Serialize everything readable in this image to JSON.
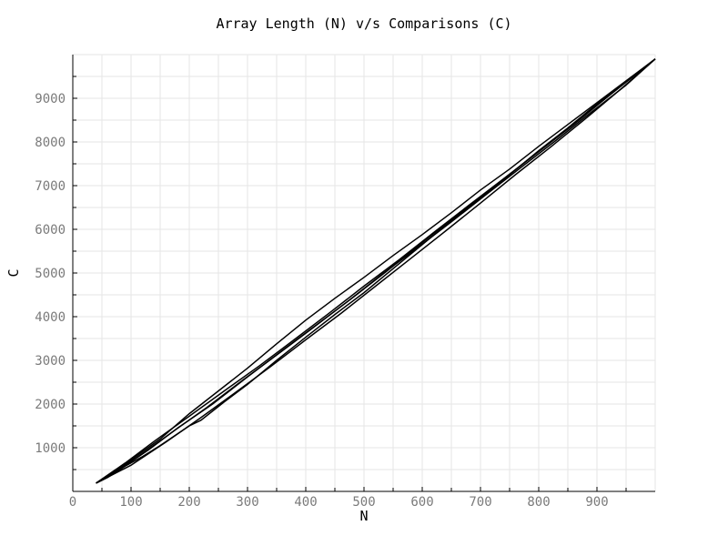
{
  "chart_data": {
    "type": "line",
    "title": "Array Length (N) v/s Comparisons (C)",
    "xlabel": "N",
    "ylabel": "C",
    "xlim": [
      0,
      1000
    ],
    "ylim": [
      0,
      10000
    ],
    "x_ticks": [
      0,
      100,
      200,
      300,
      400,
      500,
      600,
      700,
      800,
      900
    ],
    "y_ticks": [
      1000,
      2000,
      3000,
      4000,
      5000,
      6000,
      7000,
      8000,
      9000
    ],
    "x_tick_labels": [
      "0",
      "100",
      "200",
      "300",
      "400",
      "500",
      "600",
      "700",
      "800",
      "900"
    ],
    "y_tick_labels": [
      "1000",
      "2000",
      "3000",
      "4000",
      "5000",
      "6000",
      "7000",
      "8000",
      "9000"
    ],
    "grid": true,
    "line_color": "#000000",
    "grid_color": "#e6e6e6",
    "series": [
      {
        "values": [
          [
            40,
            190
          ],
          [
            60,
            320
          ],
          [
            90,
            580
          ],
          [
            120,
            800
          ],
          [
            150,
            1050
          ],
          [
            200,
            1500
          ],
          [
            220,
            1630
          ],
          [
            260,
            2050
          ],
          [
            300,
            2450
          ],
          [
            350,
            3000
          ],
          [
            400,
            3530
          ],
          [
            450,
            4050
          ],
          [
            500,
            4550
          ],
          [
            550,
            5100
          ],
          [
            600,
            5650
          ],
          [
            650,
            6200
          ],
          [
            700,
            6730
          ],
          [
            750,
            7250
          ],
          [
            800,
            7800
          ],
          [
            850,
            8320
          ],
          [
            900,
            8870
          ],
          [
            950,
            9380
          ],
          [
            1000,
            9900
          ]
        ]
      },
      {
        "values": [
          [
            40,
            190
          ],
          [
            70,
            420
          ],
          [
            100,
            720
          ],
          [
            150,
            1200
          ],
          [
            200,
            1780
          ],
          [
            250,
            2300
          ],
          [
            300,
            2820
          ],
          [
            350,
            3380
          ],
          [
            400,
            3920
          ],
          [
            450,
            4420
          ],
          [
            500,
            4900
          ],
          [
            550,
            5400
          ],
          [
            600,
            5880
          ],
          [
            650,
            6380
          ],
          [
            700,
            6900
          ],
          [
            750,
            7380
          ],
          [
            800,
            7900
          ],
          [
            850,
            8400
          ],
          [
            900,
            8900
          ],
          [
            950,
            9400
          ],
          [
            1000,
            9900
          ]
        ]
      },
      {
        "values": [
          [
            40,
            190
          ],
          [
            80,
            500
          ],
          [
            130,
            950
          ],
          [
            180,
            1450
          ],
          [
            240,
            2000
          ],
          [
            300,
            2620
          ],
          [
            360,
            3230
          ],
          [
            420,
            3830
          ],
          [
            480,
            4430
          ],
          [
            540,
            5050
          ],
          [
            600,
            5700
          ],
          [
            660,
            6330
          ],
          [
            720,
            6950
          ],
          [
            780,
            7570
          ],
          [
            840,
            8200
          ],
          [
            900,
            8850
          ],
          [
            960,
            9480
          ],
          [
            1000,
            9900
          ]
        ]
      },
      {
        "values": [
          [
            40,
            190
          ],
          [
            90,
            650
          ],
          [
            140,
            1150
          ],
          [
            200,
            1720
          ],
          [
            260,
            2300
          ],
          [
            320,
            2870
          ],
          [
            380,
            3470
          ],
          [
            440,
            4080
          ],
          [
            500,
            4700
          ],
          [
            560,
            5300
          ],
          [
            620,
            5930
          ],
          [
            680,
            6550
          ],
          [
            740,
            7160
          ],
          [
            800,
            7780
          ],
          [
            860,
            8400
          ],
          [
            920,
            9050
          ],
          [
            1000,
            9900
          ]
        ]
      },
      {
        "values": [
          [
            40,
            190
          ],
          [
            100,
            600
          ],
          [
            160,
            1130
          ],
          [
            220,
            1690
          ],
          [
            280,
            2270
          ],
          [
            340,
            2860
          ],
          [
            400,
            3470
          ],
          [
            460,
            4070
          ],
          [
            520,
            4700
          ],
          [
            580,
            5330
          ],
          [
            640,
            5960
          ],
          [
            700,
            6600
          ],
          [
            760,
            7250
          ],
          [
            820,
            7880
          ],
          [
            880,
            8530
          ],
          [
            940,
            9200
          ],
          [
            1000,
            9900
          ]
        ]
      },
      {
        "values": [
          [
            40,
            190
          ],
          [
            110,
            780
          ],
          [
            170,
            1350
          ],
          [
            230,
            1920
          ],
          [
            290,
            2530
          ],
          [
            350,
            3120
          ],
          [
            410,
            3720
          ],
          [
            470,
            4330
          ],
          [
            530,
            4960
          ],
          [
            590,
            5560
          ],
          [
            650,
            6170
          ],
          [
            710,
            6800
          ],
          [
            770,
            7420
          ],
          [
            830,
            8040
          ],
          [
            890,
            8680
          ],
          [
            950,
            9300
          ],
          [
            1000,
            9900
          ]
        ]
      }
    ]
  }
}
